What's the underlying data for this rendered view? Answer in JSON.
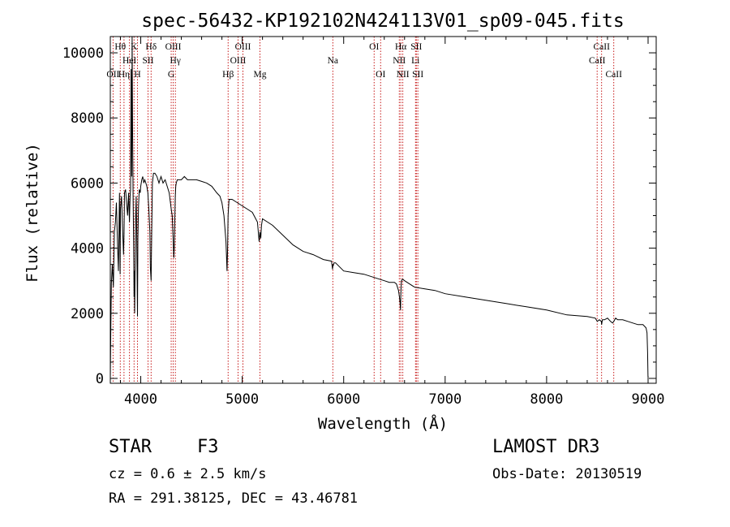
{
  "chart_data": {
    "type": "line",
    "title": "spec-56432-KP192102N424113V01_sp09-045.fits",
    "xlabel": "Wavelength (Å)",
    "ylabel": "Flux (relative)",
    "xlim": [
      3700,
      9080
    ],
    "ylim": [
      -150,
      10500
    ],
    "x_ticks": [
      4000,
      5000,
      6000,
      7000,
      8000,
      9000
    ],
    "y_ticks": [
      0,
      2000,
      4000,
      6000,
      8000,
      10000
    ],
    "series": [
      {
        "name": "flux",
        "x": [
          3700,
          3705,
          3710,
          3720,
          3730,
          3740,
          3750,
          3760,
          3770,
          3780,
          3790,
          3797,
          3800,
          3810,
          3820,
          3830,
          3835,
          3840,
          3850,
          3860,
          3870,
          3880,
          3889,
          3895,
          3900,
          3905,
          3910,
          3915,
          3920,
          3925,
          3930,
          3934,
          3937,
          3940,
          3945,
          3950,
          3955,
          3960,
          3965,
          3968,
          3972,
          3978,
          3985,
          3995,
          4000,
          4010,
          4020,
          4030,
          4040,
          4050,
          4060,
          4070,
          4080,
          4090,
          4095,
          4102,
          4108,
          4115,
          4125,
          4140,
          4160,
          4180,
          4200,
          4220,
          4240,
          4260,
          4280,
          4300,
          4310,
          4320,
          4326,
          4330,
          4340,
          4345,
          4350,
          4360,
          4380,
          4400,
          4430,
          4460,
          4500,
          4550,
          4600,
          4650,
          4700,
          4750,
          4780,
          4800,
          4820,
          4840,
          4850,
          4856,
          4861,
          4866,
          4870,
          4880,
          4900,
          4950,
          5000,
          5050,
          5100,
          5150,
          5167,
          5175,
          5183,
          5190,
          5200,
          5250,
          5300,
          5400,
          5500,
          5600,
          5700,
          5800,
          5880,
          5890,
          5893,
          5896,
          5905,
          5920,
          6000,
          6100,
          6200,
          6300,
          6400,
          6450,
          6500,
          6520,
          6540,
          6550,
          6556,
          6560,
          6563,
          6566,
          6570,
          6580,
          6600,
          6650,
          6700,
          6800,
          6900,
          7000,
          7200,
          7400,
          7600,
          7800,
          8000,
          8200,
          8400,
          8480,
          8500,
          8520,
          8540,
          8542,
          8550,
          8570,
          8600,
          8630,
          8650,
          8662,
          8680,
          8700,
          8750,
          8800,
          8850,
          8900,
          8950,
          8980,
          8990,
          8995,
          8999
        ],
        "values": [
          0,
          1500,
          2900,
          3500,
          2800,
          4500,
          4800,
          5400,
          4200,
          3300,
          5700,
          3200,
          5200,
          5600,
          4700,
          3800,
          4400,
          5700,
          5800,
          5400,
          5000,
          5700,
          4800,
          5600,
          5800,
          9500,
          6200,
          10500,
          7500,
          5600,
          4000,
          2500,
          3300,
          2000,
          3500,
          5000,
          5600,
          4600,
          3000,
          1900,
          4300,
          5300,
          5800,
          5700,
          5900,
          6100,
          6200,
          6000,
          6100,
          6000,
          5900,
          5700,
          5200,
          4500,
          3400,
          3000,
          4400,
          6000,
          6300,
          6300,
          6200,
          6000,
          6200,
          6000,
          6100,
          5900,
          5700,
          5200,
          5000,
          4200,
          3700,
          4000,
          5600,
          5900,
          6000,
          6100,
          6100,
          6100,
          6200,
          6100,
          6100,
          6100,
          6050,
          6000,
          5900,
          5700,
          5600,
          5400,
          5000,
          4200,
          3300,
          4000,
          5000,
          5300,
          5500,
          5500,
          5500,
          5400,
          5300,
          5200,
          5100,
          4800,
          4200,
          4500,
          4300,
          4700,
          4900,
          4800,
          4700,
          4400,
          4100,
          3900,
          3800,
          3650,
          3600,
          3350,
          3500,
          3450,
          3550,
          3550,
          3300,
          3250,
          3200,
          3100,
          3000,
          2950,
          2950,
          2900,
          2700,
          2500,
          2300,
          2100,
          2500,
          2800,
          3000,
          3050,
          3000,
          2900,
          2800,
          2750,
          2700,
          2600,
          2500,
          2400,
          2300,
          2200,
          2100,
          1950,
          1900,
          1850,
          1750,
          1800,
          1750,
          1650,
          1800,
          1800,
          1850,
          1750,
          1700,
          1750,
          1850,
          1800,
          1800,
          1750,
          1700,
          1650,
          1650,
          1550,
          1400,
          800,
          50
        ]
      }
    ],
    "lines": [
      {
        "label": "OII",
        "wave": 3727,
        "row": 2
      },
      {
        "label": "Hθ",
        "wave": 3798,
        "row": 0
      },
      {
        "label": "Hη",
        "wave": 3835,
        "row": 2
      },
      {
        "label": "HeI",
        "wave": 3889,
        "row": 1
      },
      {
        "label": "K",
        "wave": 3934,
        "row": 0
      },
      {
        "label": "H",
        "wave": 3968,
        "row": 2
      },
      {
        "label": "SII",
        "wave": 4072,
        "row": 1
      },
      {
        "label": "Hδ",
        "wave": 4102,
        "row": 0
      },
      {
        "label": "G",
        "wave": 4300,
        "row": 2
      },
      {
        "label": "OIII",
        "wave": 4320,
        "row": 0
      },
      {
        "label": "Hγ",
        "wave": 4341,
        "row": 1
      },
      {
        "label": "Hβ",
        "wave": 4861,
        "row": 2
      },
      {
        "label": "OIII",
        "wave": 4959,
        "row": 1
      },
      {
        "label": "OIII",
        "wave": 5007,
        "row": 0
      },
      {
        "label": "Mg",
        "wave": 5175,
        "row": 2
      },
      {
        "label": "Na",
        "wave": 5893,
        "row": 1
      },
      {
        "label": "OI",
        "wave": 6300,
        "row": 0
      },
      {
        "label": "OI",
        "wave": 6364,
        "row": 2
      },
      {
        "label": "NII",
        "wave": 6548,
        "row": 1
      },
      {
        "label": "Hα",
        "wave": 6563,
        "row": 0
      },
      {
        "label": "NII",
        "wave": 6583,
        "row": 2
      },
      {
        "label": "Li",
        "wave": 6708,
        "row": 1
      },
      {
        "label": "SII",
        "wave": 6716,
        "row": 0
      },
      {
        "label": "SII",
        "wave": 6731,
        "row": 2
      },
      {
        "label": "CaII",
        "wave": 8498,
        "row": 1
      },
      {
        "label": "CaII",
        "wave": 8542,
        "row": 0
      },
      {
        "label": "CaII",
        "wave": 8662,
        "row": 2
      }
    ]
  },
  "info": {
    "object_class": "STAR",
    "subclass": "F3",
    "survey": "LAMOST DR3",
    "redshift": "cz = 0.6 ± 2.5 km/s",
    "obs_date": "Obs-Date: 20130519",
    "coords": "RA = 291.38125, DEC =  43.46781"
  },
  "colors": {
    "line_marker": "#c00000",
    "spectrum": "#000000"
  }
}
